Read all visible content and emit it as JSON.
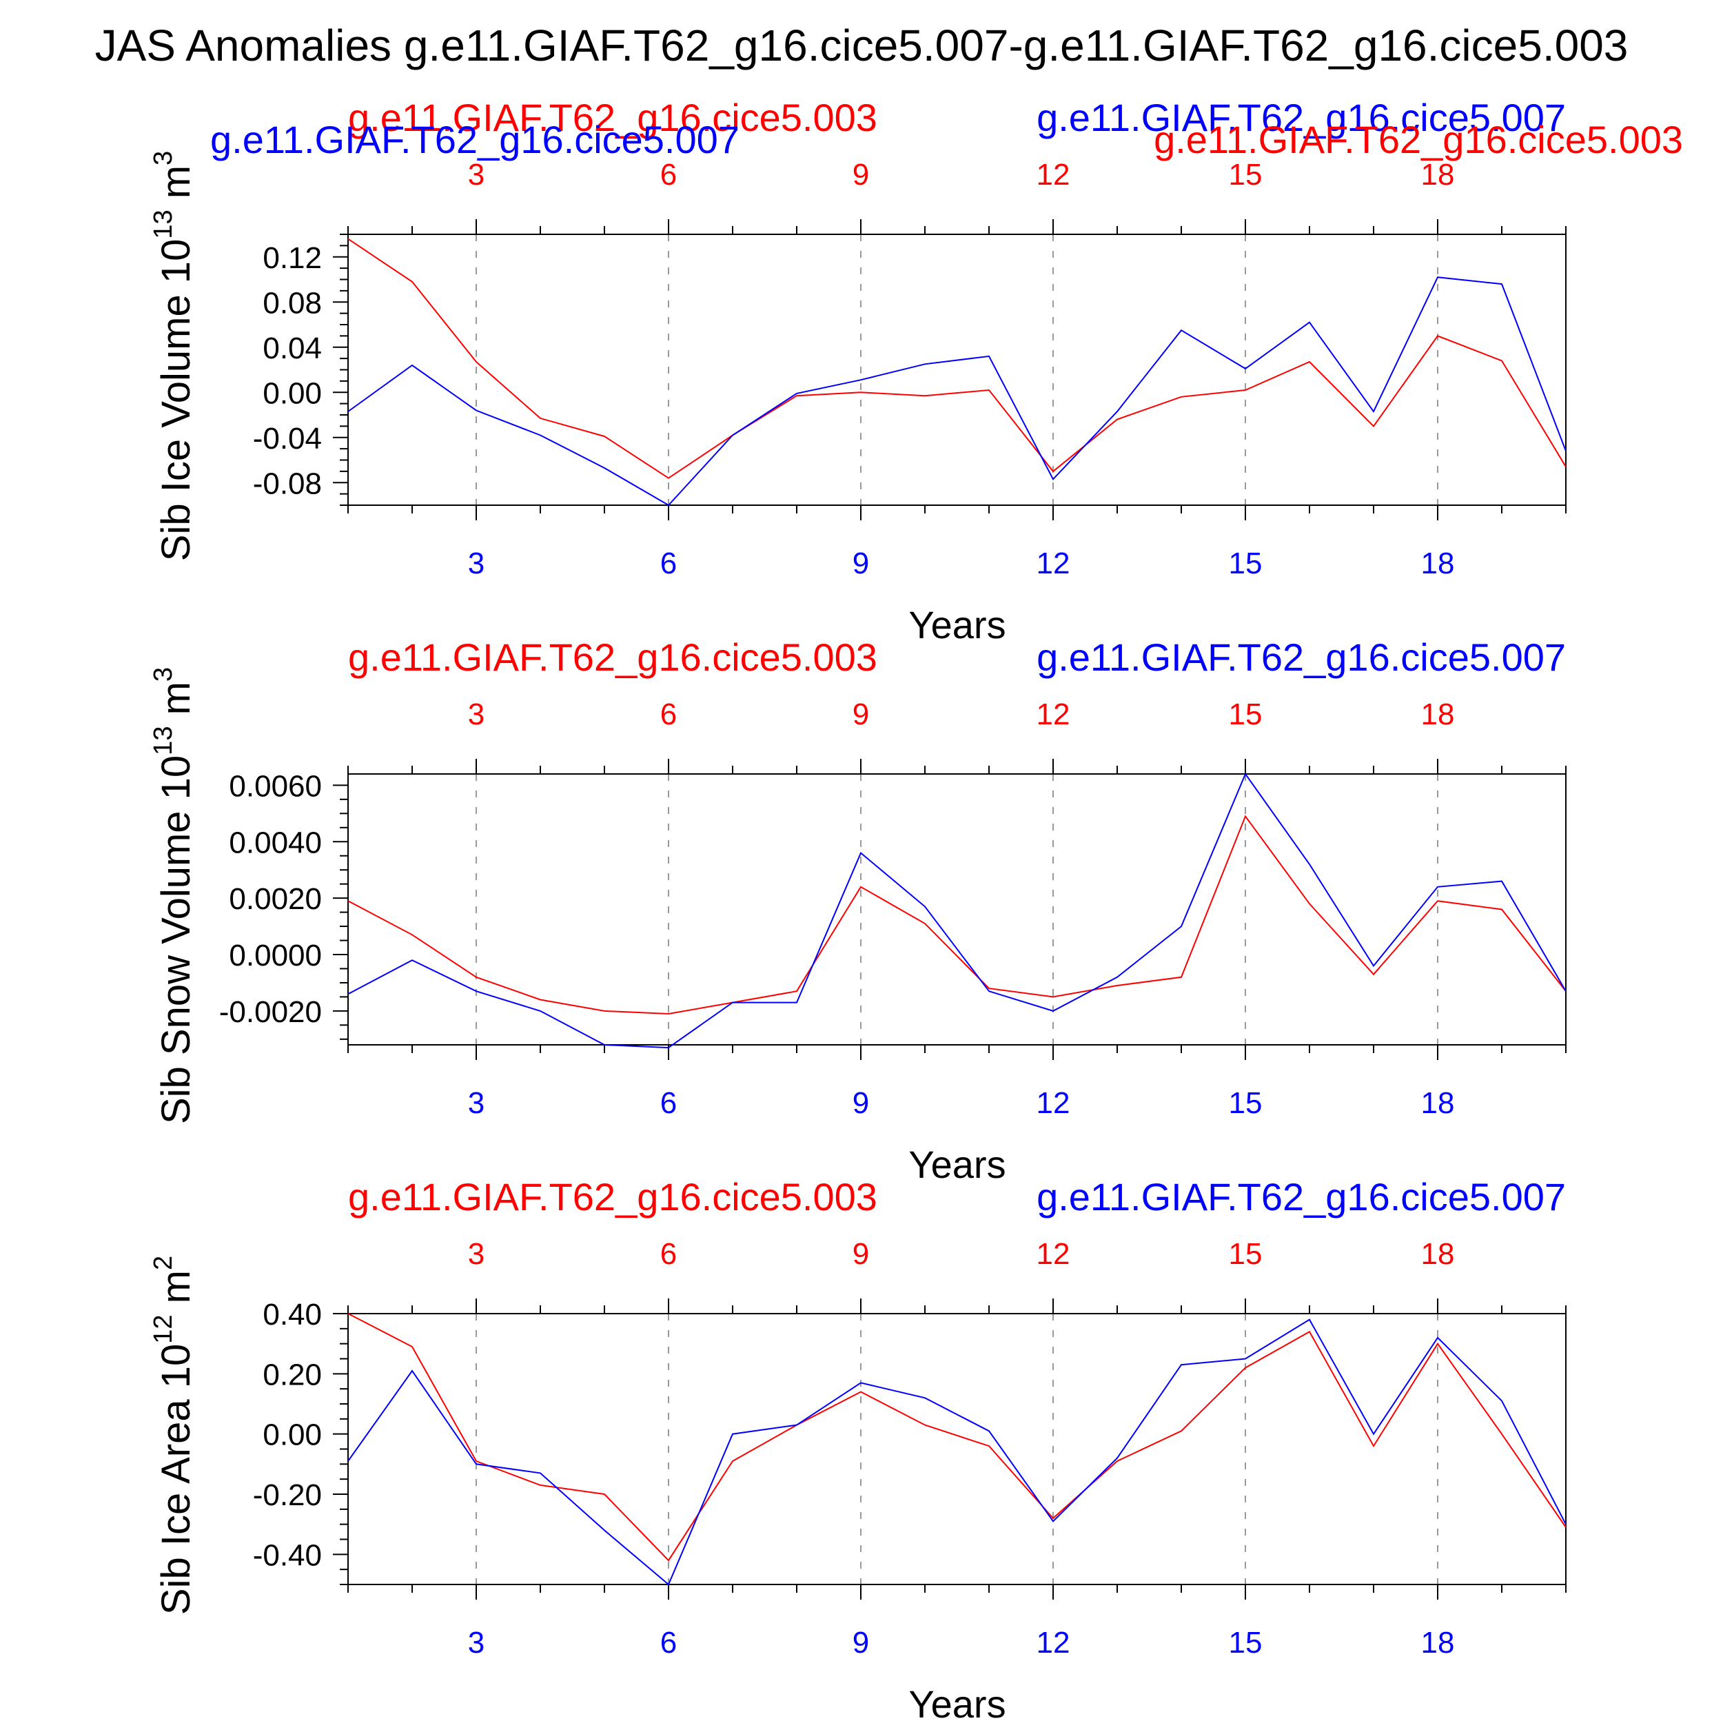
{
  "title": "JAS Anomalies g.e11.GIAF.T62_g16.cice5.007-g.e11.GIAF.T62_g16.cice5.003",
  "colors": {
    "red": "#ff0000",
    "blue": "#0000ff",
    "black": "#000000",
    "grid": "#9a9a9a"
  },
  "chart_data": [
    {
      "type": "line",
      "ylabel": "Sib Ice Volume",
      "ylabel_unit": "10",
      "ylabel_exp": "13",
      "ylabel_unit2": " m",
      "ylabel_exp2": "3",
      "xlabel": "Years",
      "top_legend": {
        "left": "g.e11.GIAF.T62_g16.cice5.003",
        "right": "g.e11.GIAF.T62_g16.cice5.007"
      },
      "overlap_labels": {
        "blue": "g.e11.GIAF.T62_g16.cice5.007",
        "red": "g.e11.GIAF.T62_g16.cice5.003"
      },
      "xlim": [
        1,
        20
      ],
      "ylim": [
        -0.1,
        0.14
      ],
      "yticks": [
        0.12,
        0.08,
        0.04,
        0.0,
        -0.04,
        -0.08
      ],
      "ytick_labels": [
        "0.12",
        "0.08",
        "0.04",
        "0.00",
        "-0.04",
        "-0.08"
      ],
      "xticks": [
        3,
        6,
        9,
        12,
        15,
        18
      ],
      "xtick_labels": [
        "3",
        "6",
        "9",
        "12",
        "15",
        "18"
      ],
      "x": [
        1,
        2,
        3,
        4,
        5,
        6,
        7,
        8,
        9,
        10,
        11,
        12,
        13,
        14,
        15,
        16,
        17,
        18,
        19,
        20
      ],
      "series": [
        {
          "name": "g.e11.GIAF.T62_g16.cice5.003",
          "color": "#ff0000",
          "values": [
            0.136,
            0.098,
            0.027,
            -0.023,
            -0.039,
            -0.076,
            -0.038,
            -0.003,
            0.0,
            -0.003,
            0.002,
            -0.07,
            -0.024,
            -0.004,
            0.002,
            0.027,
            -0.03,
            0.05,
            0.028,
            -0.066
          ]
        },
        {
          "name": "g.e11.GIAF.T62_g16.cice5.007",
          "color": "#0000ff",
          "values": [
            -0.017,
            0.024,
            -0.016,
            -0.038,
            -0.067,
            -0.1,
            -0.038,
            -0.001,
            0.011,
            0.025,
            0.032,
            -0.077,
            -0.017,
            0.055,
            0.021,
            0.062,
            -0.017,
            0.102,
            0.096,
            -0.052
          ]
        }
      ]
    },
    {
      "type": "line",
      "ylabel": "Sib Snow Volume",
      "ylabel_unit": "10",
      "ylabel_exp": "13",
      "ylabel_unit2": " m",
      "ylabel_exp2": "3",
      "xlabel": "Years",
      "top_legend": {
        "left": "g.e11.GIAF.T62_g16.cice5.003",
        "right": "g.e11.GIAF.T62_g16.cice5.007"
      },
      "xlim": [
        1,
        20
      ],
      "ylim": [
        -0.0032,
        0.0064
      ],
      "yticks": [
        0.006,
        0.004,
        0.002,
        0.0,
        -0.002
      ],
      "ytick_labels": [
        "0.0060",
        "0.0040",
        "0.0020",
        "0.0000",
        "-0.0020"
      ],
      "xticks": [
        3,
        6,
        9,
        12,
        15,
        18
      ],
      "xtick_labels": [
        "3",
        "6",
        "9",
        "12",
        "15",
        "18"
      ],
      "x": [
        1,
        2,
        3,
        4,
        5,
        6,
        7,
        8,
        9,
        10,
        11,
        12,
        13,
        14,
        15,
        16,
        17,
        18,
        19,
        20
      ],
      "series": [
        {
          "name": "g.e11.GIAF.T62_g16.cice5.003",
          "color": "#ff0000",
          "values": [
            0.0019,
            0.0007,
            -0.0008,
            -0.0016,
            -0.002,
            -0.0021,
            -0.0017,
            -0.0013,
            0.0024,
            0.0011,
            -0.0012,
            -0.0015,
            -0.0011,
            -0.0008,
            0.0049,
            0.0018,
            -0.0007,
            0.0019,
            0.0016,
            -0.0013
          ]
        },
        {
          "name": "g.e11.GIAF.T62_g16.cice5.007",
          "color": "#0000ff",
          "values": [
            -0.0014,
            -0.0002,
            -0.0013,
            -0.002,
            -0.0032,
            -0.0033,
            -0.0017,
            -0.0017,
            0.0036,
            0.0017,
            -0.0013,
            -0.002,
            -0.0008,
            0.001,
            0.0064,
            0.0032,
            -0.0004,
            0.0024,
            0.0026,
            -0.0013
          ]
        }
      ]
    },
    {
      "type": "line",
      "ylabel": "Sib Ice Area",
      "ylabel_unit": "10",
      "ylabel_exp": "12",
      "ylabel_unit2": " m",
      "ylabel_exp2": "2",
      "xlabel": "Years",
      "top_legend": {
        "left": "g.e11.GIAF.T62_g16.cice5.003",
        "right": "g.e11.GIAF.T62_g16.cice5.007"
      },
      "xlim": [
        1,
        20
      ],
      "ylim": [
        -0.5,
        0.4
      ],
      "yticks": [
        0.4,
        0.2,
        0.0,
        -0.2,
        -0.4
      ],
      "ytick_labels": [
        "0.40",
        "0.20",
        "0.00",
        "-0.20",
        "-0.40"
      ],
      "xticks": [
        3,
        6,
        9,
        12,
        15,
        18
      ],
      "xtick_labels": [
        "3",
        "6",
        "9",
        "12",
        "15",
        "18"
      ],
      "x": [
        1,
        2,
        3,
        4,
        5,
        6,
        7,
        8,
        9,
        10,
        11,
        12,
        13,
        14,
        15,
        16,
        17,
        18,
        19,
        20
      ],
      "series": [
        {
          "name": "g.e11.GIAF.T62_g16.cice5.003",
          "color": "#ff0000",
          "values": [
            0.4,
            0.29,
            -0.09,
            -0.17,
            -0.2,
            -0.42,
            -0.09,
            0.03,
            0.14,
            0.03,
            -0.04,
            -0.28,
            -0.09,
            0.01,
            0.22,
            0.34,
            -0.04,
            0.3,
            0.0,
            -0.31
          ]
        },
        {
          "name": "g.e11.GIAF.T62_g16.cice5.007",
          "color": "#0000ff",
          "values": [
            -0.09,
            0.21,
            -0.1,
            -0.13,
            -0.32,
            -0.5,
            0.0,
            0.03,
            0.17,
            0.12,
            0.01,
            -0.29,
            -0.08,
            0.23,
            0.25,
            0.38,
            0.0,
            0.32,
            0.11,
            -0.3
          ]
        }
      ]
    }
  ]
}
